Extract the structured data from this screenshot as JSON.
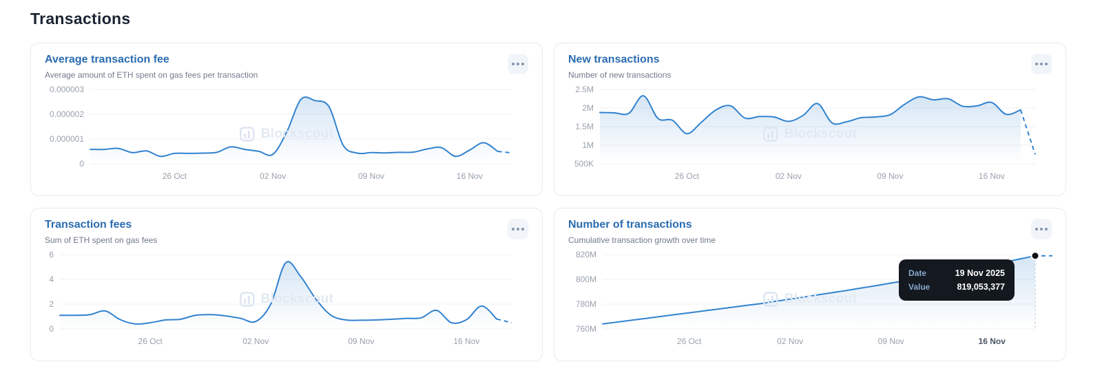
{
  "page": {
    "title": "Transactions"
  },
  "watermark_text": "Blockscout",
  "tooltip": {
    "date_label": "Date",
    "date_value": "19 Nov 2025",
    "value_label": "Value",
    "value_value": "819,053,377"
  },
  "colors": {
    "accent_line": "#3182ce",
    "title_blue": "#2b6cb0",
    "area_top": "rgba(49,130,206,0.20)",
    "area_bottom": "rgba(49,130,206,0)",
    "grid": "#eef0f4",
    "axis_text": "#98a0ac",
    "tooltip_bg": "#14181f",
    "marker_dot": "#0b0d12",
    "hover_line": "#c3c9d4"
  },
  "chart_data": [
    {
      "type": "area",
      "title": "Average transaction fee",
      "subtitle": "Average amount of ETH spent on gas fees per transaction",
      "xlabel": "",
      "ylabel": "",
      "grid": true,
      "x_ticks": [
        {
          "index": 6,
          "label": "26 Oct"
        },
        {
          "index": 13,
          "label": "02 Nov"
        },
        {
          "index": 20,
          "label": "09 Nov"
        },
        {
          "index": 27,
          "label": "16 Nov"
        }
      ],
      "y_ticks": [
        {
          "value": 0,
          "label": "0"
        },
        {
          "value": 1e-06,
          "label": "0.000001"
        },
        {
          "value": 2e-06,
          "label": "0.000002"
        },
        {
          "value": 3e-06,
          "label": "0.000003"
        }
      ],
      "ylim": [
        0,
        3e-06
      ],
      "dashed_tail_from_index": 29,
      "values": [
        5.8e-07,
        5.8e-07,
        6.2e-07,
        4.5e-07,
        5.2e-07,
        3e-07,
        4.2e-07,
        4.2e-07,
        4.3e-07,
        4.6e-07,
        6.8e-07,
        5.8e-07,
        5e-07,
        3.8e-07,
        1.3e-06,
        2.6e-06,
        2.55e-06,
        2.3e-06,
        7.5e-07,
        4.3e-07,
        4.5e-07,
        4.4e-07,
        4.6e-07,
        4.7e-07,
        6e-07,
        6.5e-07,
        3e-07,
        5.5e-07,
        8.5e-07,
        5e-07,
        4.4e-07
      ]
    },
    {
      "type": "area",
      "title": "New transactions",
      "subtitle": "Number of new transactions",
      "xlabel": "",
      "ylabel": "",
      "grid": true,
      "x_ticks": [
        {
          "index": 6,
          "label": "26 Oct"
        },
        {
          "index": 13,
          "label": "02 Nov"
        },
        {
          "index": 20,
          "label": "09 Nov"
        },
        {
          "index": 27,
          "label": "16 Nov"
        }
      ],
      "y_ticks": [
        {
          "value": 500000,
          "label": "500K"
        },
        {
          "value": 1000000,
          "label": "1M"
        },
        {
          "value": 1500000,
          "label": "1.5M"
        },
        {
          "value": 2000000,
          "label": "2M"
        },
        {
          "value": 2500000,
          "label": "2.5M"
        }
      ],
      "ylim": [
        500000,
        2500000
      ],
      "dashed_tail_from_index": 29,
      "values": [
        1880000,
        1870000,
        1860000,
        2330000,
        1720000,
        1670000,
        1310000,
        1620000,
        1950000,
        2060000,
        1730000,
        1770000,
        1760000,
        1640000,
        1800000,
        2120000,
        1600000,
        1630000,
        1740000,
        1760000,
        1820000,
        2100000,
        2300000,
        2220000,
        2250000,
        2050000,
        2060000,
        2150000,
        1830000,
        1950000,
        750000
      ]
    },
    {
      "type": "area",
      "title": "Transaction fees",
      "subtitle": "Sum of ETH spent on gas fees",
      "xlabel": "",
      "ylabel": "",
      "grid": true,
      "x_ticks": [
        {
          "index": 6,
          "label": "26 Oct"
        },
        {
          "index": 13,
          "label": "02 Nov"
        },
        {
          "index": 20,
          "label": "09 Nov"
        },
        {
          "index": 27,
          "label": "16 Nov"
        }
      ],
      "y_ticks": [
        {
          "value": 0,
          "label": "0"
        },
        {
          "value": 2,
          "label": "2"
        },
        {
          "value": 4,
          "label": "4"
        },
        {
          "value": 6,
          "label": "6"
        }
      ],
      "ylim": [
        0,
        6
      ],
      "dashed_tail_from_index": 29,
      "values": [
        1.1,
        1.1,
        1.15,
        1.45,
        0.75,
        0.4,
        0.5,
        0.72,
        0.78,
        1.1,
        1.15,
        1.05,
        0.85,
        0.6,
        2.0,
        5.35,
        4.2,
        2.4,
        1.1,
        0.72,
        0.7,
        0.72,
        0.78,
        0.85,
        0.9,
        1.5,
        0.5,
        0.75,
        1.85,
        0.8,
        0.5
      ]
    },
    {
      "type": "area",
      "title": "Number of transactions",
      "subtitle": "Cumulative transaction growth over time",
      "xlabel": "",
      "ylabel": "",
      "grid": true,
      "x_ticks": [
        {
          "index": 6,
          "label": "26 Oct"
        },
        {
          "index": 13,
          "label": "02 Nov"
        },
        {
          "index": 20,
          "label": "09 Nov"
        },
        {
          "index": 27,
          "label": "16 Nov",
          "emphasis": true
        }
      ],
      "y_ticks": [
        {
          "value": 760000000,
          "label": "760M"
        },
        {
          "value": 780000000,
          "label": "780M"
        },
        {
          "value": 800000000,
          "label": "800M"
        },
        {
          "value": 820000000,
          "label": "820M"
        }
      ],
      "ylim": [
        760000000,
        820000000
      ],
      "hover_point": {
        "index": 30,
        "date": "19 Nov 2025",
        "value": 819053377
      },
      "values": [
        764000000,
        765500000,
        767000000,
        768500000,
        770000000,
        771500000,
        773000000,
        774500000,
        776000000,
        777500000,
        779000000,
        780500000,
        782300000,
        784000000,
        785800000,
        787600000,
        789400000,
        791200000,
        793100000,
        795000000,
        797000000,
        799000000,
        801200000,
        803400000,
        805600000,
        807800000,
        810000000,
        812000000,
        814300000,
        816600000,
        819053377
      ]
    }
  ]
}
